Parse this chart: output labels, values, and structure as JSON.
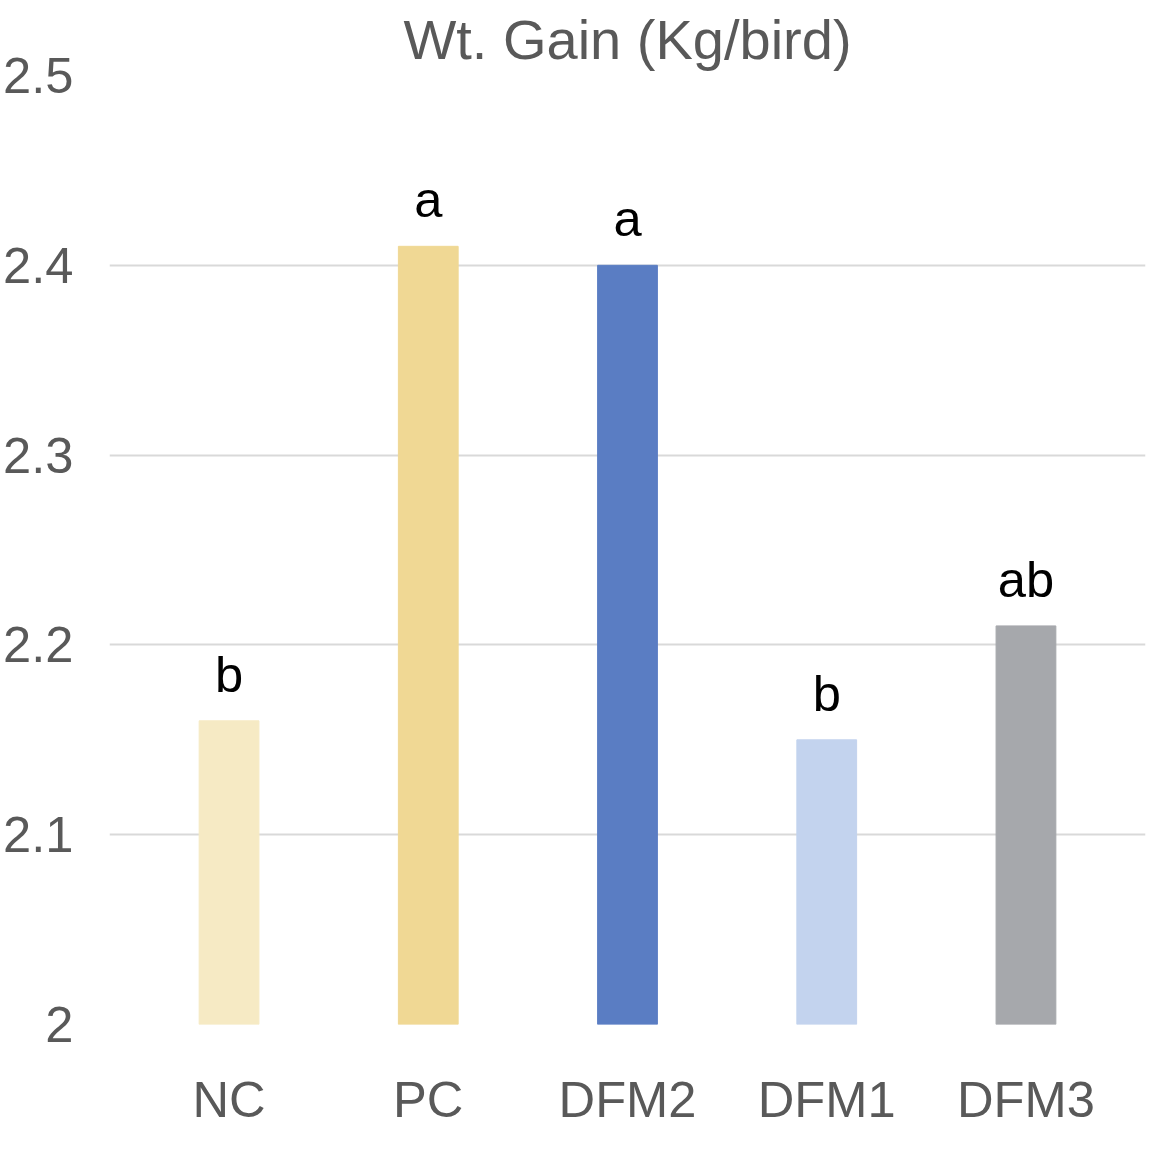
{
  "chart_data": {
    "type": "bar",
    "title": "Wt. Gain (Kg/bird)",
    "categories": [
      "NC",
      "PC",
      "DFM2",
      "DFM1",
      "DFM3"
    ],
    "values": [
      2.16,
      2.41,
      2.4,
      2.15,
      2.21
    ],
    "colors": [
      "#f6eac4",
      "#f0d894",
      "#5a7dc3",
      "#c3d3ee",
      "#a6a8ac"
    ],
    "ylim": [
      2,
      2.5
    ],
    "yticks": [
      2,
      2.1,
      2.2,
      2.3,
      2.4,
      2.5
    ],
    "grid": "y",
    "annotations": [
      {
        "text": "b",
        "x": "NC",
        "y": 2.16
      },
      {
        "text": "a",
        "x": "PC",
        "y": 2.41
      },
      {
        "text": "a",
        "x": "DFM2",
        "y": 2.4
      },
      {
        "text": "b",
        "x": "DFM1",
        "y": 2.15
      },
      {
        "text": "ab",
        "x": "DFM3",
        "y": 2.21
      }
    ]
  }
}
